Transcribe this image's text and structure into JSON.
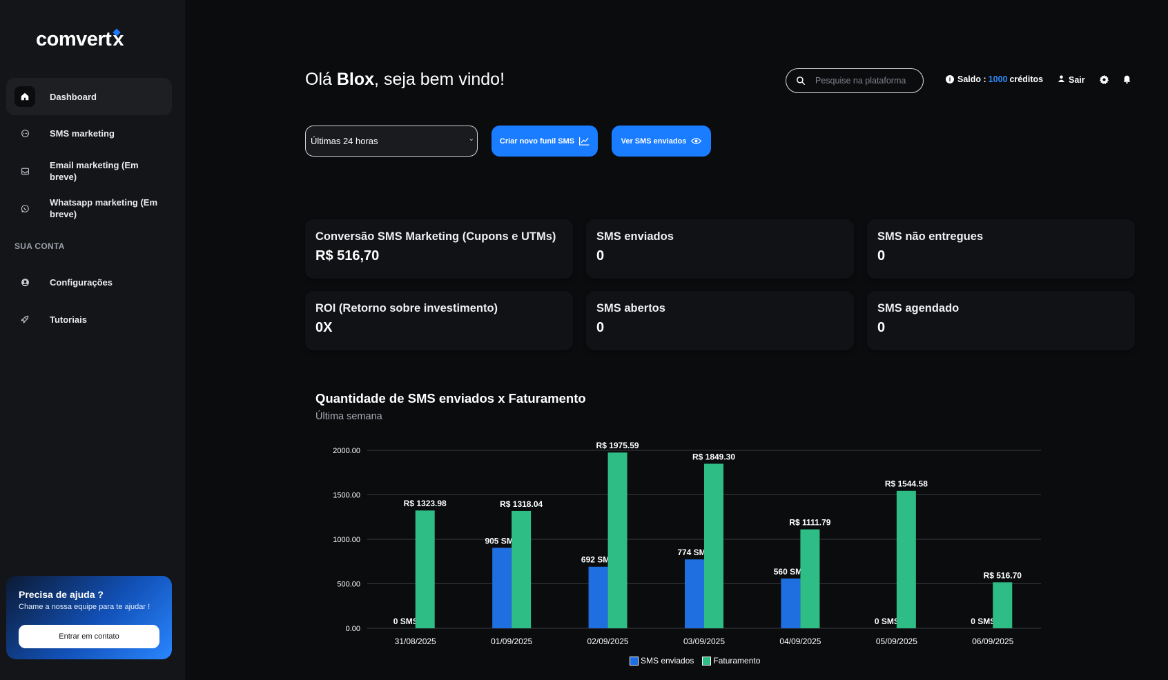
{
  "brand": {
    "logo_main": "comvert",
    "logo_x": "x"
  },
  "sidebar": {
    "items": [
      {
        "label": "Dashboard",
        "icon": "home-icon",
        "active": true
      },
      {
        "label": "SMS marketing",
        "icon": "chat-bubble-icon"
      },
      {
        "label": "Email marketing (Em breve)",
        "icon": "inbox-icon"
      },
      {
        "label": "Whatsapp marketing (Em breve)",
        "icon": "whatsapp-icon"
      }
    ],
    "section_title": "SUA CONTA",
    "account_items": [
      {
        "label": "Configurações",
        "icon": "user-circle-icon"
      },
      {
        "label": "Tutoriais",
        "icon": "rocket-icon"
      }
    ],
    "help": {
      "title": "Precisa de ajuda ?",
      "subtitle": "Chame a nossa equipe para te ajudar !",
      "button": "Entrar em contato"
    }
  },
  "header": {
    "greeting_prefix": "Olá ",
    "user_name": "Blox",
    "greeting_suffix": ", seja bem vindo!",
    "search_placeholder": "Pesquise na plataforma",
    "saldo_label": "Saldo :",
    "saldo_value": "1000",
    "saldo_unit": "créditos",
    "logout": "Sair"
  },
  "controls": {
    "period_selected": "Últimas 24 horas",
    "create_funnel": "Criar novo funil SMS",
    "view_sent": "Ver SMS enviados"
  },
  "stats": [
    {
      "title": "Conversão SMS Marketing (Cupons e UTMs)",
      "value": "R$ 516,70"
    },
    {
      "title": "SMS enviados",
      "value": "0"
    },
    {
      "title": "SMS não entregues",
      "value": "0"
    },
    {
      "title": "ROI (Retorno sobre investimento)",
      "value": "0X"
    },
    {
      "title": "SMS abertos",
      "value": "0"
    },
    {
      "title": "SMS agendado",
      "value": "0"
    }
  ],
  "chart_title": "Quantidade de SMS enviados x Faturamento",
  "chart_subtitle": "Última semana",
  "colors": {
    "accent": "#1a7cff",
    "sms": "#1f6fe0",
    "revenue": "#2ebd85"
  },
  "chart_data": {
    "type": "bar",
    "categories": [
      "31/08/2025",
      "01/09/2025",
      "02/09/2025",
      "03/09/2025",
      "04/09/2025",
      "05/09/2025",
      "06/09/2025"
    ],
    "series": [
      {
        "name": "SMS enviados",
        "values": [
          0,
          905,
          692,
          774,
          560,
          0,
          0
        ],
        "labels": [
          "0 SMS",
          "905 SMS",
          "692 SMS",
          "774 SMS",
          "560 SMS",
          "0 SMS",
          "0 SMS"
        ]
      },
      {
        "name": "Faturamento",
        "values": [
          1323.98,
          1318.04,
          1975.59,
          1849.3,
          1111.79,
          1544.58,
          516.7
        ],
        "labels": [
          "R$ 1323.98",
          "R$ 1318.04",
          "R$ 1975.59",
          "R$ 1849.30",
          "R$ 1111.79",
          "R$ 1544.58",
          "R$ 516.70"
        ]
      }
    ],
    "yticks": [
      "0.00",
      "500.00",
      "1000.00",
      "1500.00",
      "2000.00"
    ],
    "ylim": [
      0,
      2000
    ],
    "grid": true,
    "legend": "bottom-center"
  }
}
